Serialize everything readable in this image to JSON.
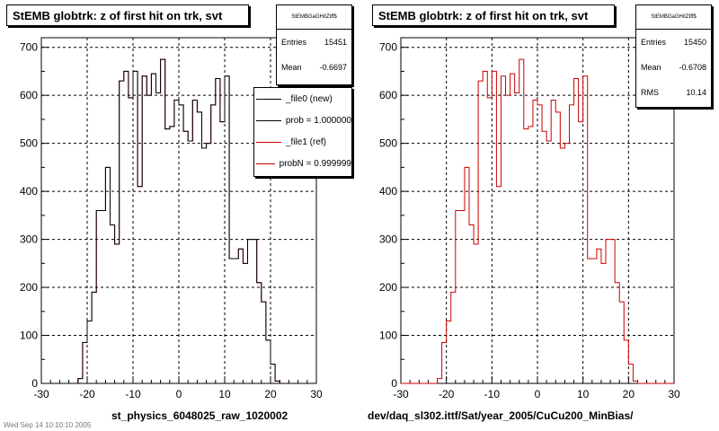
{
  "chart_data": [
    {
      "type": "histogram",
      "title": "StEMB globtrk: z of first hit on trk, svt",
      "xlabel": "st_physics_6048025_raw_1020002",
      "xlim": [
        -30,
        30
      ],
      "ylim": [
        0,
        720
      ],
      "x_ticks": [
        -30,
        -20,
        -10,
        0,
        10,
        20,
        30
      ],
      "y_ticks": [
        0,
        100,
        200,
        300,
        400,
        500,
        600,
        700
      ],
      "grid": true,
      "bin_edges": [
        -30,
        -29,
        -28,
        -27,
        -26,
        -25,
        -24,
        -23,
        -22,
        -21,
        -20,
        -19,
        -18,
        -17,
        -16,
        -15,
        -14,
        -13,
        -12,
        -11,
        -10,
        -9,
        -8,
        -7,
        -6,
        -5,
        -4,
        -3,
        -2,
        -1,
        0,
        1,
        2,
        3,
        4,
        5,
        6,
        7,
        8,
        9,
        10,
        11,
        12,
        13,
        14,
        15,
        16,
        17,
        18,
        19,
        20,
        21,
        22,
        23,
        24,
        25,
        26,
        27,
        28,
        29,
        30
      ],
      "series": [
        {
          "name": "_file0 (new)",
          "color": "#000000",
          "values": [
            0,
            0,
            0,
            0,
            0,
            0,
            0,
            0,
            10,
            85,
            130,
            190,
            360,
            360,
            450,
            330,
            290,
            630,
            650,
            595,
            650,
            410,
            640,
            600,
            645,
            605,
            675,
            530,
            535,
            590,
            580,
            525,
            505,
            590,
            565,
            490,
            500,
            580,
            635,
            545,
            640,
            260,
            260,
            280,
            250,
            300,
            300,
            210,
            170,
            90,
            40,
            5,
            0,
            0,
            0,
            0,
            0,
            0,
            0,
            0
          ]
        },
        {
          "name": "_file1 (ref)",
          "color": "#cc0000",
          "values": [
            0,
            0,
            0,
            0,
            0,
            0,
            0,
            0,
            10,
            85,
            130,
            190,
            360,
            360,
            450,
            330,
            290,
            630,
            650,
            595,
            650,
            410,
            640,
            600,
            645,
            605,
            675,
            530,
            535,
            590,
            580,
            525,
            505,
            590,
            565,
            490,
            500,
            580,
            635,
            545,
            640,
            260,
            260,
            280,
            250,
            300,
            300,
            210,
            170,
            90,
            40,
            5,
            0,
            0,
            0,
            0,
            0,
            0,
            0,
            0
          ]
        }
      ],
      "stats": {
        "name": "StEMBGaGHitZtff$",
        "entries_label": "Entries",
        "entries": "15451",
        "mean_label": "Mean",
        "mean": "-0.6697"
      },
      "legend": [
        {
          "label": "_file0 (new)",
          "color": "#000000"
        },
        {
          "label": "prob = 1.000000",
          "color": "#000000"
        },
        {
          "label": "_file1 (ref)",
          "color": "#cc0000"
        },
        {
          "label": "probN = 0.999999",
          "color": "#cc0000"
        }
      ]
    },
    {
      "type": "histogram",
      "title": "StEMB globtrk: z of first hit on trk, svt",
      "xlabel": "dev/daq_sl302.ittf/Sat/year_2005/CuCu200_MinBias/",
      "xlim": [
        -30,
        30
      ],
      "ylim": [
        0,
        720
      ],
      "x_ticks": [
        -30,
        -20,
        -10,
        0,
        10,
        20,
        30
      ],
      "y_ticks": [
        0,
        100,
        200,
        300,
        400,
        500,
        600,
        700
      ],
      "grid": true,
      "bin_edges": [
        -30,
        -29,
        -28,
        -27,
        -26,
        -25,
        -24,
        -23,
        -22,
        -21,
        -20,
        -19,
        -18,
        -17,
        -16,
        -15,
        -14,
        -13,
        -12,
        -11,
        -10,
        -9,
        -8,
        -7,
        -6,
        -5,
        -4,
        -3,
        -2,
        -1,
        0,
        1,
        2,
        3,
        4,
        5,
        6,
        7,
        8,
        9,
        10,
        11,
        12,
        13,
        14,
        15,
        16,
        17,
        18,
        19,
        20,
        21,
        22,
        23,
        24,
        25,
        26,
        27,
        28,
        29,
        30
      ],
      "series": [
        {
          "name": "",
          "color": "#cc0000",
          "values": [
            0,
            0,
            0,
            0,
            0,
            0,
            0,
            0,
            10,
            85,
            130,
            190,
            360,
            360,
            450,
            330,
            290,
            630,
            650,
            595,
            650,
            410,
            640,
            600,
            645,
            605,
            675,
            530,
            535,
            590,
            580,
            525,
            505,
            590,
            565,
            490,
            500,
            580,
            635,
            545,
            640,
            260,
            260,
            280,
            250,
            300,
            300,
            210,
            170,
            90,
            40,
            5,
            0,
            0,
            0,
            0,
            0,
            0,
            0,
            0
          ]
        }
      ],
      "stats": {
        "name": "StEMBGaGHitZtff$",
        "entries_label": "Entries",
        "entries": "15450",
        "mean_label": "Mean",
        "mean": "-0.6708",
        "rms_label": "RMS",
        "rms": "10.14"
      }
    }
  ],
  "footer": "Wed Sep 14 10:10:10 2005"
}
